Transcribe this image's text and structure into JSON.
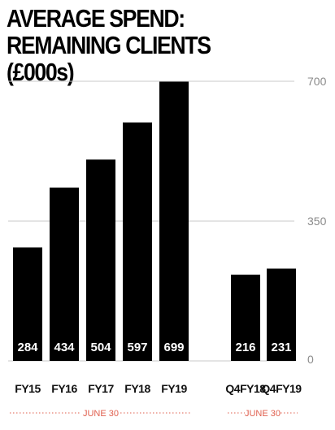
{
  "title_lines": [
    "AVERAGE SPEND:",
    "REMAINING CLIENTS (£000s)"
  ],
  "colors": {
    "bar": "#000000",
    "grid": "#c9c9c9",
    "tick": "#8a8a8a",
    "period": "#e0604f",
    "bar_label": "#ffffff"
  },
  "chart_data": {
    "type": "bar",
    "title": "AVERAGE SPEND: REMAINING CLIENTS (£000s)",
    "categories": [
      "FY15",
      "FY16",
      "FY17",
      "FY18",
      "FY19",
      "Q4FY18",
      "Q4FY19"
    ],
    "values": [
      284,
      434,
      504,
      597,
      699,
      216,
      231
    ],
    "data_labels": [
      "284",
      "434",
      "504",
      "597",
      "699",
      "216",
      "231"
    ],
    "ylim": [
      0,
      700
    ],
    "y_ticks": [
      0,
      350,
      700
    ],
    "y_tick_labels": [
      "0",
      "350",
      "700"
    ],
    "grid": true,
    "groups": [
      {
        "label": "JUNE 30",
        "categories": [
          "FY15",
          "FY16",
          "FY17",
          "FY18",
          "FY19"
        ]
      },
      {
        "label": "JUNE 30",
        "categories": [
          "Q4FY18",
          "Q4FY19"
        ]
      }
    ]
  }
}
